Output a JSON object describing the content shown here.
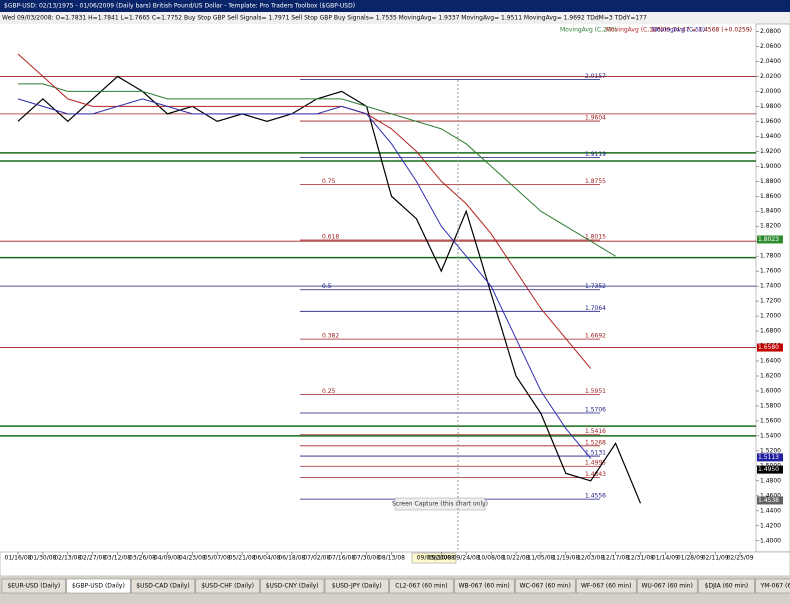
{
  "window": {
    "title": "$GBP-USD:  02/13/1975 - 01/06/2009  (Daily bars)   British Pound/US Dollar  -  Template: Pro Traders Toolbox ($GBP-USD)",
    "info": "Wed 09/03/2008:  O=1.7831  H=1.7841  L=1.7665  C=1.7752  Buy Stop GBP Sell Signals= 1.7971  Sell Stop GBP Buy Signals= 1.7535  MovingAvg= 1.9337  MovingAvg= 1.9511  MovingAvg= 1.9692  TDdM=3  TDdY=177",
    "quote": "1/6/09 14:47 = 1.4568 (+0.0259)",
    "cursor_date": "09/03/2008",
    "capture_note": "Screen Capture (this chart only)",
    "tabs": [
      "$EUR-USD (Daily)",
      "$GBP-USD (Daily)",
      "$USD-CAD (Daily)",
      "$USD-CHF (Daily)",
      "$USD-CNY (Daily)",
      "$USD-JPY (Daily)",
      "CL2-067 (60 min)",
      "WB-067 (60 min)",
      "WC-067 (60 min)",
      "WF-067 (60 min)",
      "WU-067 (60 min)",
      "$DJIA (60 min)",
      "YM-067 (60 min)",
      "$EUR-USD (Daily)"
    ]
  },
  "chart_data": {
    "type": "line",
    "categories": [
      "01/16/08",
      "01/30/08",
      "02/13/08",
      "02/27/08",
      "03/12/08",
      "03/26/08",
      "04/09/08",
      "04/23/08",
      "05/07/08",
      "05/21/08",
      "06/04/08",
      "06/18/08",
      "07/02/08",
      "07/16/08",
      "07/30/08",
      "08/13/08",
      null,
      "09/10/08",
      "09/24/08",
      "10/08/08",
      "10/22/08",
      "11/05/08",
      "11/19/08",
      "12/03/08",
      "12/17/08",
      "12/31/08",
      "01/14/09",
      "01/28/09",
      "02/11/09",
      "02/25/09"
    ],
    "series": [
      {
        "color": "#000000",
        "values": [
          1.96,
          1.99,
          1.96,
          1.99,
          2.02,
          2.0,
          1.97,
          1.98,
          1.96,
          1.97,
          1.96,
          1.97,
          1.99,
          2.0,
          1.98,
          1.86,
          1.83,
          1.76,
          1.84,
          1.73,
          1.62,
          1.57,
          1.49,
          1.48,
          1.53,
          1.45,
          null,
          null,
          null,
          null
        ]
      },
      {
        "name": "MovingAvg (C,200)",
        "color": "#2e7d32",
        "values": [
          2.01,
          2.01,
          2.0,
          2.0,
          2.0,
          2.0,
          1.99,
          1.99,
          1.99,
          1.99,
          1.99,
          1.99,
          1.99,
          1.99,
          1.98,
          1.97,
          1.96,
          1.95,
          1.93,
          1.9,
          1.87,
          1.84,
          1.82,
          1.8,
          1.78,
          null,
          null,
          null,
          null,
          null
        ]
      },
      {
        "name": "MovingAvg (C,100)",
        "color": "#b22222",
        "values": [
          2.05,
          2.02,
          1.99,
          1.98,
          1.98,
          1.98,
          1.98,
          1.98,
          1.98,
          1.98,
          1.98,
          1.98,
          1.98,
          1.98,
          1.97,
          1.95,
          1.92,
          1.88,
          1.85,
          1.81,
          1.76,
          1.71,
          1.67,
          1.63,
          null,
          null,
          null,
          null,
          null,
          null
        ]
      },
      {
        "name": "MovingAvg (C,50)",
        "color": "#3030b0",
        "values": [
          1.99,
          1.98,
          1.97,
          1.97,
          1.98,
          1.99,
          1.98,
          1.97,
          1.97,
          1.97,
          1.97,
          1.97,
          1.97,
          1.98,
          1.97,
          1.93,
          1.88,
          1.82,
          1.78,
          1.74,
          1.67,
          1.6,
          1.55,
          1.51,
          null,
          null,
          null,
          null,
          null,
          null
        ]
      }
    ],
    "ylim": [
      1.385,
      2.09
    ],
    "yticks": [
      {
        "value": 2.08,
        "label": "2.0800"
      },
      {
        "value": 2.06,
        "label": "2.0600"
      },
      {
        "value": 2.04,
        "label": "2.0400"
      },
      {
        "value": 2.02,
        "label": "2.0200"
      },
      {
        "value": 2.0,
        "label": "2.0000"
      },
      {
        "value": 1.98,
        "label": "1.9800"
      },
      {
        "value": 1.96,
        "label": "1.9600"
      },
      {
        "value": 1.94,
        "label": "1.9400"
      },
      {
        "value": 1.92,
        "label": "1.9200"
      },
      {
        "value": 1.9,
        "label": "1.9000"
      },
      {
        "value": 1.88,
        "label": "1.8800"
      },
      {
        "value": 1.86,
        "label": "1.8600"
      },
      {
        "value": 1.84,
        "label": "1.8400"
      },
      {
        "value": 1.82,
        "label": "1.8200"
      },
      {
        "value": 1.8,
        "label": "1.8000"
      },
      {
        "value": 1.78,
        "label": "1.7800"
      },
      {
        "value": 1.76,
        "label": "1.7600"
      },
      {
        "value": 1.74,
        "label": "1.7400"
      },
      {
        "value": 1.72,
        "label": "1.7200"
      },
      {
        "value": 1.7,
        "label": "1.7000"
      },
      {
        "value": 1.68,
        "label": "1.6800"
      },
      {
        "value": 1.66,
        "label": "1.6600"
      },
      {
        "value": 1.64,
        "label": "1.6400"
      },
      {
        "value": 1.62,
        "label": "1.6200"
      },
      {
        "value": 1.6,
        "label": "1.6000"
      },
      {
        "value": 1.58,
        "label": "1.5800"
      },
      {
        "value": 1.56,
        "label": "1.5600"
      },
      {
        "value": 1.54,
        "label": "1.5400"
      },
      {
        "value": 1.52,
        "label": "1.5200"
      },
      {
        "value": 1.5,
        "label": "1.5000"
      },
      {
        "value": 1.48,
        "label": "1.4800"
      },
      {
        "value": 1.46,
        "label": "1.4600"
      },
      {
        "value": 1.44,
        "label": "1.4400"
      },
      {
        "value": 1.42,
        "label": "1.4200"
      },
      {
        "value": 1.4,
        "label": "1.4000"
      }
    ],
    "levels": [
      {
        "value": 2.0157,
        "label": "2.0157",
        "color": "#1a1a80"
      },
      {
        "value": 1.9604,
        "label": "1.9604",
        "color": "#a02020"
      },
      {
        "value": 1.9119,
        "label": "1.9119",
        "color": "#1a1a80"
      },
      {
        "value": 1.8755,
        "label": "1.8755",
        "ratio": "0.75",
        "color": "#a02020"
      },
      {
        "value": 1.8015,
        "label": "1.8015",
        "ratio": "0.618",
        "color": "#a02020"
      },
      {
        "value": 1.7352,
        "label": "1.7352",
        "ratio": "0.5",
        "color": "#1a1a80"
      },
      {
        "value": 1.7064,
        "label": "1.7064",
        "color": "#1a1a80"
      },
      {
        "value": 1.6692,
        "label": "1.6692",
        "ratio": "0.382",
        "color": "#a02020"
      },
      {
        "value": 1.5951,
        "label": "1.5951",
        "ratio": "0.25",
        "color": "#a02020"
      },
      {
        "value": 1.5706,
        "label": "1.5706",
        "color": "#1a1a80"
      },
      {
        "value": 1.5416,
        "label": "1.5416",
        "color": "#a02020"
      },
      {
        "value": 1.5268,
        "label": "1.5268",
        "color": "#a02020"
      },
      {
        "value": 1.5131,
        "label": "1.5131",
        "color": "#1a1a80"
      },
      {
        "value": 1.4995,
        "label": "1.4995",
        "color": "#a02020"
      },
      {
        "value": 1.4843,
        "label": "1.4843",
        "color": "#a02020"
      },
      {
        "value": 1.4556,
        "label": "1.4556",
        "color": "#1a1a80"
      }
    ],
    "support_lines": [
      {
        "value": 2.02,
        "color": "#a02020"
      },
      {
        "value": 1.97,
        "color": "#a02020"
      },
      {
        "value": 1.918,
        "color": "#1a6b1a"
      },
      {
        "value": 1.907,
        "color": "#1a6b1a"
      },
      {
        "value": 1.8,
        "color": "#a02020"
      },
      {
        "value": 1.778,
        "color": "#1a6b1a"
      },
      {
        "value": 1.74,
        "color": "#1a1a80"
      },
      {
        "value": 1.658,
        "color": "#a02020"
      },
      {
        "value": 1.553,
        "color": "#1a6b1a"
      },
      {
        "value": 1.54,
        "color": "#1a6b1a"
      }
    ],
    "axis_tags": [
      {
        "value": 1.8023,
        "label": "1.8023",
        "color": "#2e8b2e"
      },
      {
        "value": 1.658,
        "label": "1.6580",
        "color": "#c00000"
      },
      {
        "value": 1.5113,
        "label": "1.5113",
        "color": "#2020a0"
      },
      {
        "value": 1.495,
        "label": "1.4950",
        "color": "#000000"
      },
      {
        "value": 1.4538,
        "label": "1.4538",
        "color": "#606060"
      }
    ]
  }
}
